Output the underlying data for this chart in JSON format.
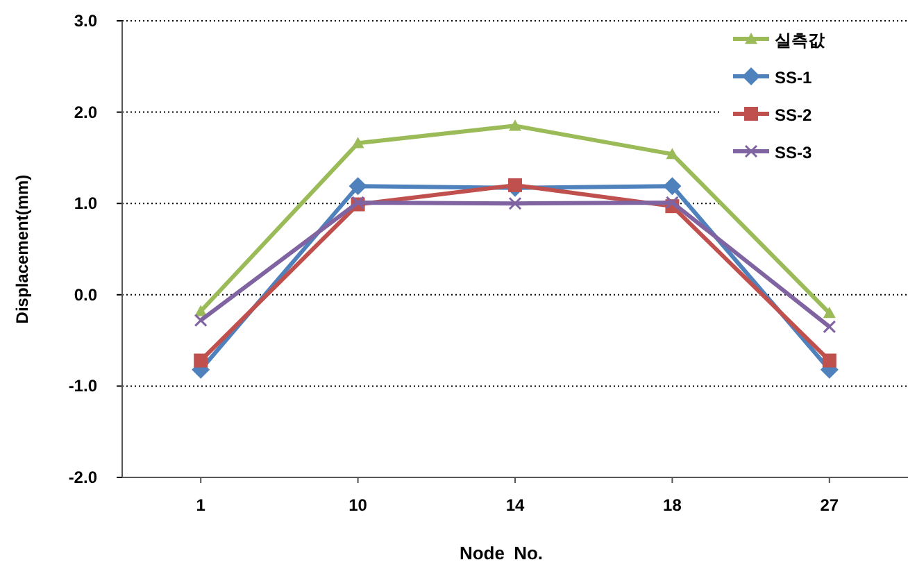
{
  "chart_data": {
    "type": "line",
    "xlabel": "Node No.",
    "ylabel": "Displacement(mm)",
    "categories": [
      "1",
      "10",
      "14",
      "18",
      "27"
    ],
    "series": [
      {
        "name": "실측값",
        "color": "#9bbb59",
        "marker": "triangle",
        "values": [
          -0.18,
          1.66,
          1.85,
          1.54,
          -0.2
        ]
      },
      {
        "name": "SS-1",
        "color": "#4f81bd",
        "marker": "diamond",
        "values": [
          -0.82,
          1.19,
          1.17,
          1.19,
          -0.82
        ]
      },
      {
        "name": "SS-2",
        "color": "#c0504d",
        "marker": "square",
        "values": [
          -0.72,
          0.99,
          1.2,
          0.97,
          -0.72
        ]
      },
      {
        "name": "SS-3",
        "color": "#8064a2",
        "marker": "cross",
        "values": [
          -0.28,
          1.01,
          1.0,
          1.01,
          -0.35
        ]
      }
    ],
    "ylim": [
      -2,
      3
    ],
    "yticks": [
      {
        "value": -2,
        "label": "-2.0"
      },
      {
        "value": -1,
        "label": "-1.0"
      },
      {
        "value": 0,
        "label": "0.0"
      },
      {
        "value": 1,
        "label": "1.0"
      },
      {
        "value": 2,
        "label": "2.0"
      },
      {
        "value": 3,
        "label": "3.0"
      }
    ],
    "grid": "y",
    "legend": "top right"
  }
}
